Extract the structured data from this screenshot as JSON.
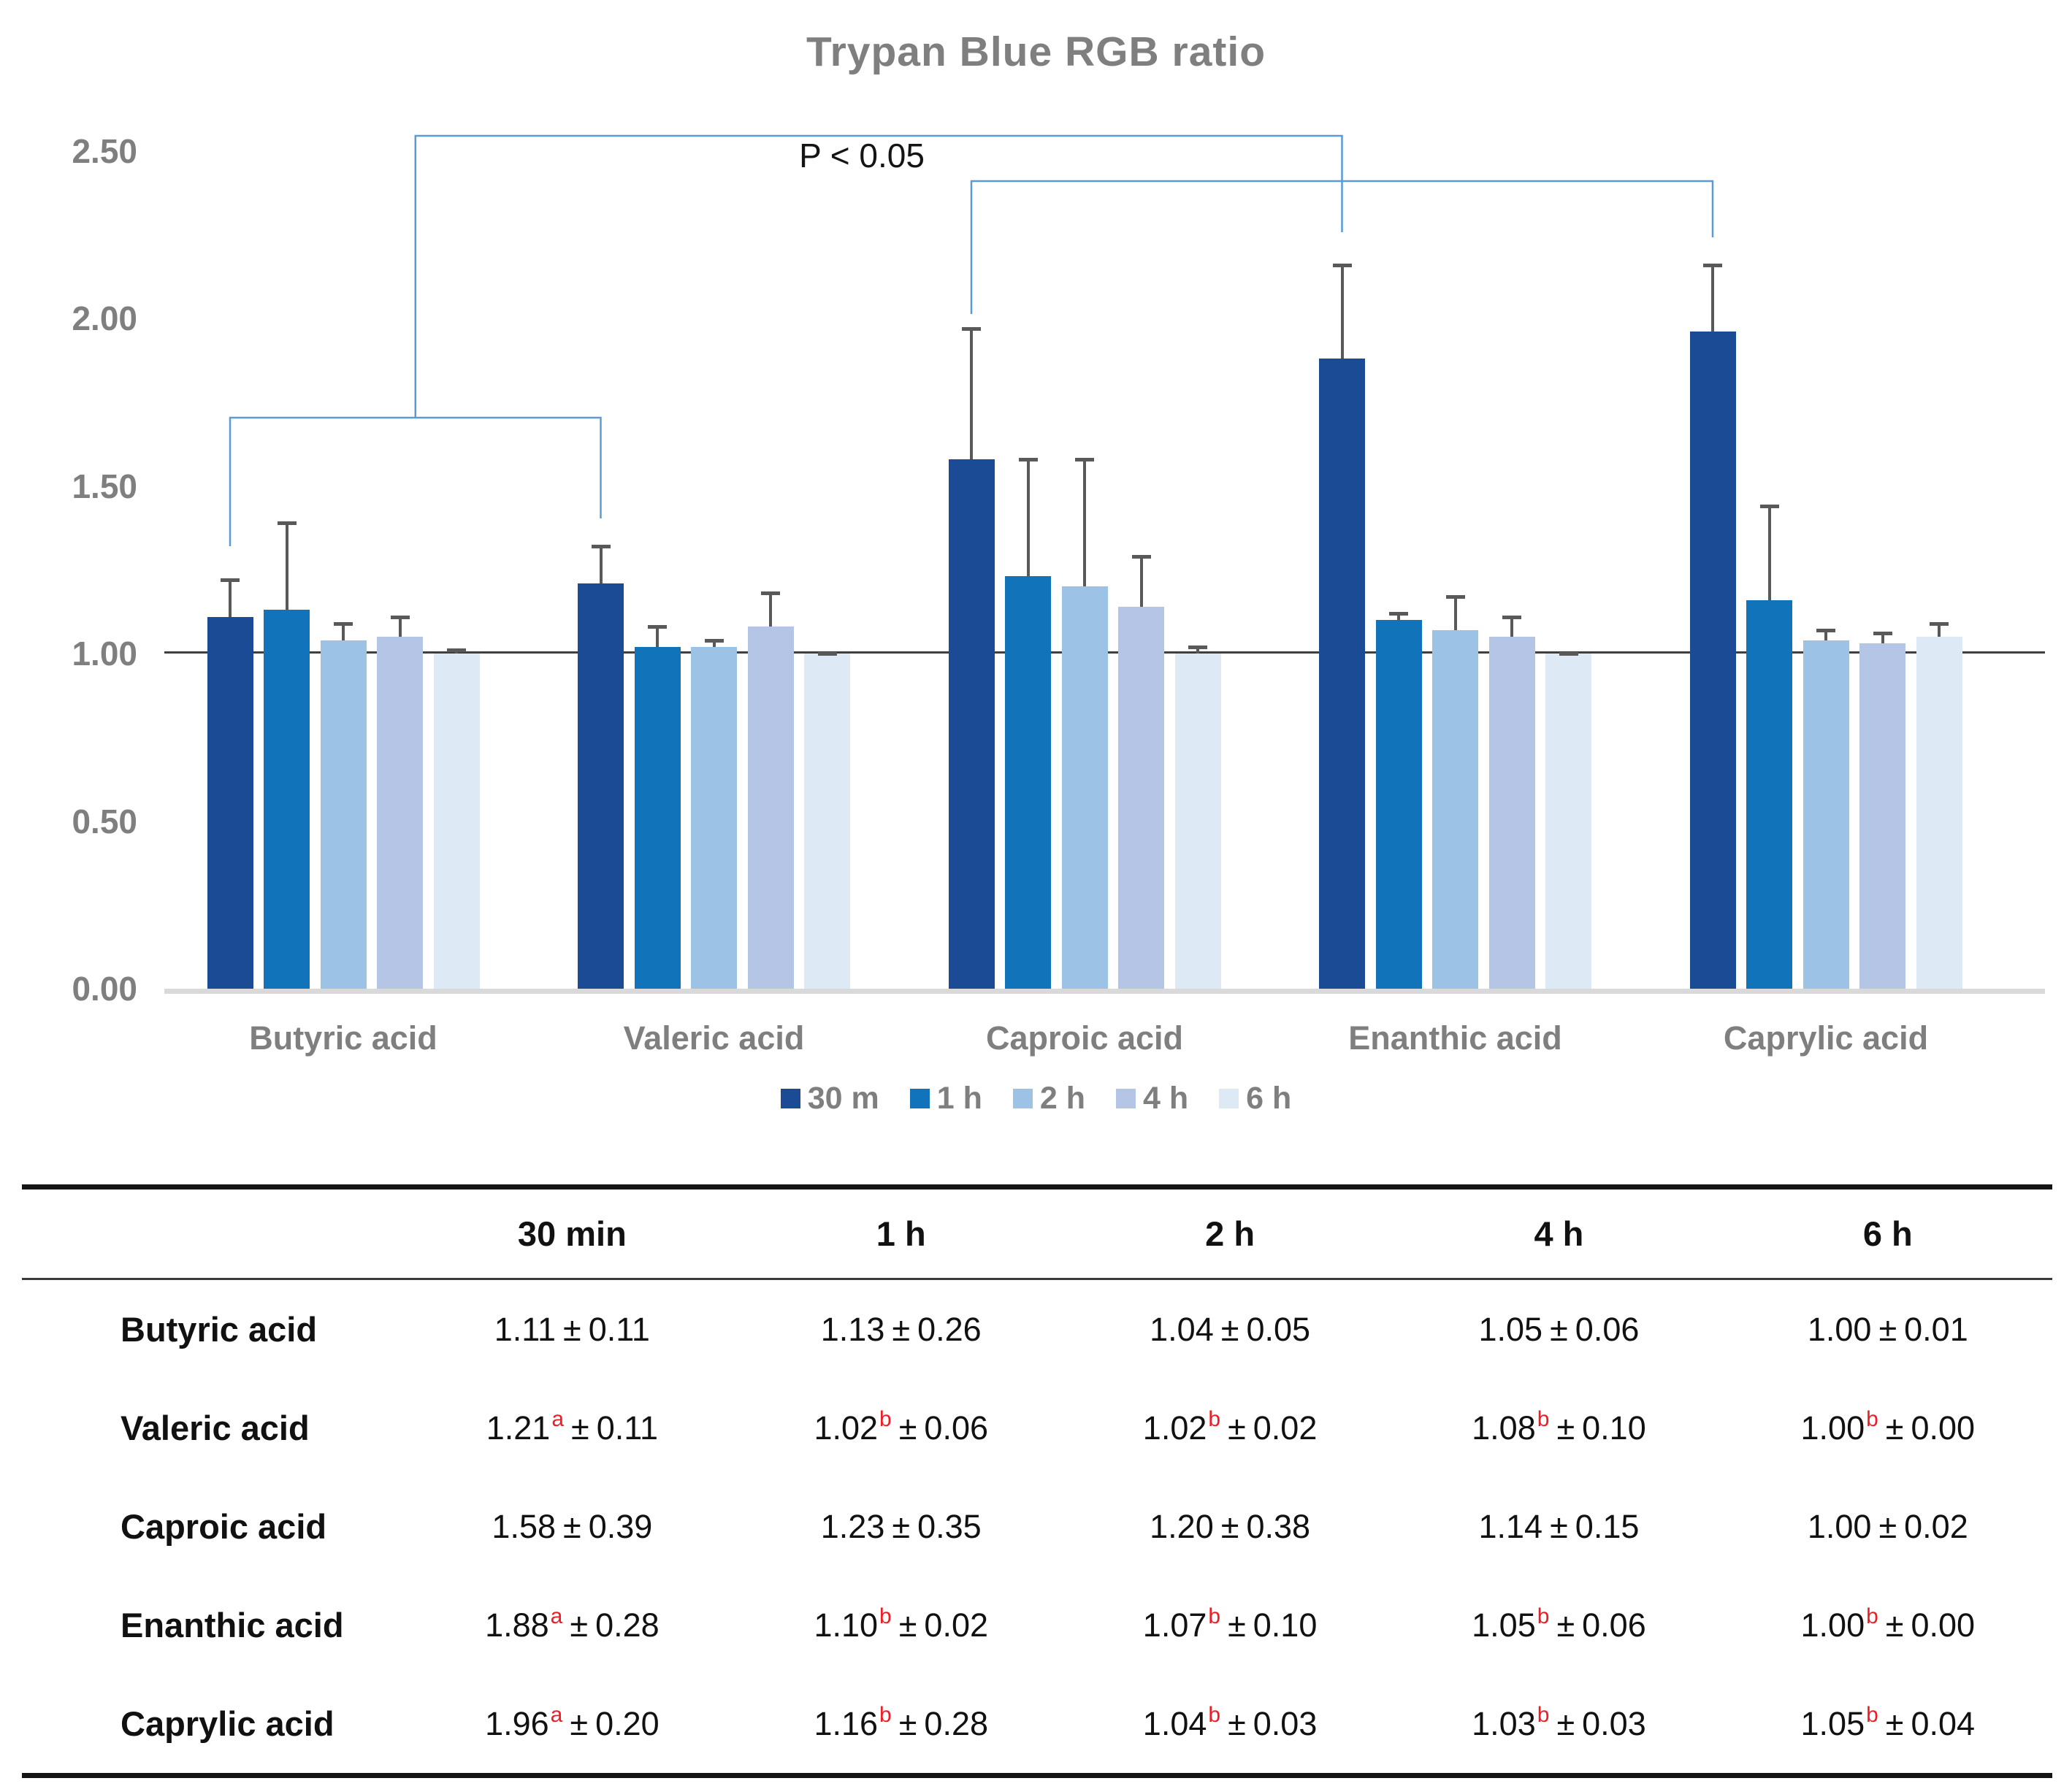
{
  "title": "Trypan Blue RGB ratio",
  "significance_label": "P < 0.05",
  "colors": {
    "series": [
      "#1a4b94",
      "#1173ba",
      "#9cc3e6",
      "#b5c5e6",
      "#dde9f5"
    ],
    "bracket": "#5b9bd5",
    "error_bar": "#595959",
    "axis_text": "#7f7f7f",
    "reference_line": "#3f3f3f",
    "baseline": "#d9d9d9",
    "superscript": "#ee1c25"
  },
  "y_axis": {
    "ticks": [
      "2.50",
      "2.00",
      "1.50",
      "1.00",
      "0.50",
      "0.00"
    ]
  },
  "legend": [
    {
      "label": "30 m",
      "color": "#1a4b94"
    },
    {
      "label": "1 h",
      "color": "#1173ba"
    },
    {
      "label": "2 h",
      "color": "#9cc3e6"
    },
    {
      "label": "4 h",
      "color": "#b5c5e6"
    },
    {
      "label": "6 h",
      "color": "#dde9f5"
    }
  ],
  "chart_data": {
    "type": "bar",
    "title": "Trypan Blue RGB ratio",
    "annotation": "P < 0.05",
    "categories": [
      "Butyric acid",
      "Valeric acid",
      "Caproic acid",
      "Enanthic acid",
      "Caprylic acid"
    ],
    "series": [
      {
        "name": "30 m",
        "color": "#1a4b94",
        "values": [
          1.11,
          1.21,
          1.58,
          1.88,
          1.96
        ],
        "errors": [
          0.11,
          0.11,
          0.39,
          0.28,
          0.2
        ]
      },
      {
        "name": "1 h",
        "color": "#1173ba",
        "values": [
          1.13,
          1.02,
          1.23,
          1.1,
          1.16
        ],
        "errors": [
          0.26,
          0.06,
          0.35,
          0.02,
          0.28
        ]
      },
      {
        "name": "2 h",
        "color": "#9cc3e6",
        "values": [
          1.04,
          1.02,
          1.2,
          1.07,
          1.04
        ],
        "errors": [
          0.05,
          0.02,
          0.38,
          0.1,
          0.03
        ]
      },
      {
        "name": "4 h",
        "color": "#b5c5e6",
        "values": [
          1.05,
          1.08,
          1.14,
          1.05,
          1.03
        ],
        "errors": [
          0.06,
          0.1,
          0.15,
          0.06,
          0.03
        ]
      },
      {
        "name": "6 h",
        "color": "#dde9f5",
        "values": [
          1.0,
          1.0,
          1.0,
          1.0,
          1.05
        ],
        "errors": [
          0.01,
          0.0,
          0.02,
          0.0,
          0.04
        ]
      }
    ],
    "ylim": [
      0,
      2.5
    ],
    "reference_line": 1.0,
    "grid": false,
    "legend_position": "bottom"
  },
  "table": {
    "headers": [
      "30 min",
      "1 h",
      "2 h",
      "4 h",
      "6 h"
    ],
    "plus_minus": "±",
    "rows": [
      {
        "label": "Butyric acid",
        "cells": [
          {
            "mean": "1.11",
            "sup": "",
            "sd": "0.11"
          },
          {
            "mean": "1.13",
            "sup": "",
            "sd": "0.26"
          },
          {
            "mean": "1.04",
            "sup": "",
            "sd": "0.05"
          },
          {
            "mean": "1.05",
            "sup": "",
            "sd": "0.06"
          },
          {
            "mean": "1.00",
            "sup": "",
            "sd": "0.01"
          }
        ]
      },
      {
        "label": "Valeric acid",
        "cells": [
          {
            "mean": "1.21",
            "sup": "a",
            "sd": "0.11"
          },
          {
            "mean": "1.02",
            "sup": "b",
            "sd": "0.06"
          },
          {
            "mean": "1.02",
            "sup": "b",
            "sd": "0.02"
          },
          {
            "mean": "1.08",
            "sup": "b",
            "sd": "0.10"
          },
          {
            "mean": "1.00",
            "sup": "b",
            "sd": "0.00"
          }
        ]
      },
      {
        "label": "Caproic acid",
        "cells": [
          {
            "mean": "1.58",
            "sup": "",
            "sd": "0.39"
          },
          {
            "mean": "1.23",
            "sup": "",
            "sd": "0.35"
          },
          {
            "mean": "1.20",
            "sup": "",
            "sd": "0.38"
          },
          {
            "mean": "1.14",
            "sup": "",
            "sd": "0.15"
          },
          {
            "mean": "1.00",
            "sup": "",
            "sd": "0.02"
          }
        ]
      },
      {
        "label": "Enanthic acid",
        "cells": [
          {
            "mean": "1.88",
            "sup": "a",
            "sd": "0.28"
          },
          {
            "mean": "1.10",
            "sup": "b",
            "sd": "0.02"
          },
          {
            "mean": "1.07",
            "sup": "b",
            "sd": "0.10"
          },
          {
            "mean": "1.05",
            "sup": "b",
            "sd": "0.06"
          },
          {
            "mean": "1.00",
            "sup": "b",
            "sd": "0.00"
          }
        ]
      },
      {
        "label": "Caprylic acid",
        "cells": [
          {
            "mean": "1.96",
            "sup": "a",
            "sd": "0.20"
          },
          {
            "mean": "1.16",
            "sup": "b",
            "sd": "0.28"
          },
          {
            "mean": "1.04",
            "sup": "b",
            "sd": "0.03"
          },
          {
            "mean": "1.03",
            "sup": "b",
            "sd": "0.03"
          },
          {
            "mean": "1.05",
            "sup": "b",
            "sd": "0.04"
          }
        ]
      }
    ]
  }
}
